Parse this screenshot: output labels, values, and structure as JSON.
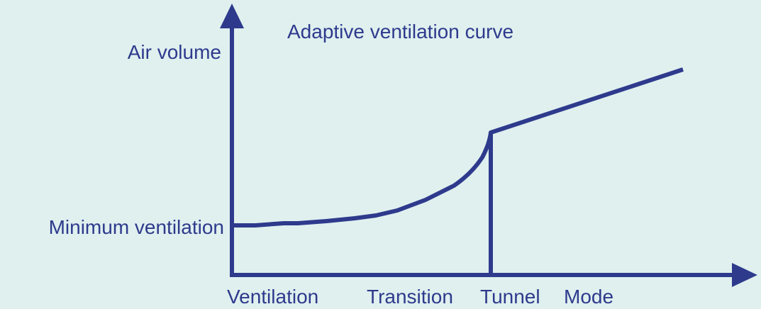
{
  "title": "Adaptive ventilation curve",
  "y_axis_label": "Air volume",
  "baseline_label": "Minimum ventilation",
  "x_labels": [
    "Ventilation",
    "Transition",
    "Tunnel",
    "Mode"
  ]
}
